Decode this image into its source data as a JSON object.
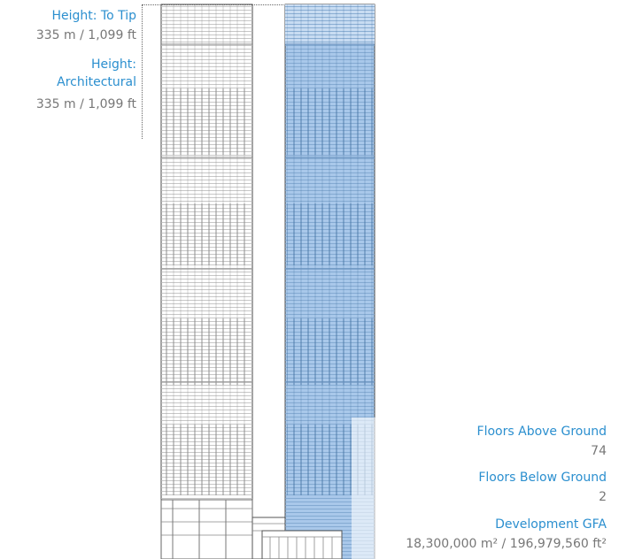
{
  "heights": {
    "to_tip_label": "Height: To Tip",
    "to_tip_value": "335 m / 1,099 ft",
    "architectural_label": "Height: Architectural",
    "architectural_value": "335 m / 1,099 ft"
  },
  "stats": {
    "floors_above_label": "Floors Above Ground",
    "floors_above_value": "74",
    "floors_below_label": "Floors Below Ground",
    "floors_below_value": "2",
    "gfa_label": "Development GFA",
    "gfa_value": "18,300,000 m² / 196,979,560 ft²"
  },
  "colors": {
    "label": "#2b8fcf",
    "value": "#777777",
    "highlight": "#5b9ee0",
    "line": "#444444"
  }
}
